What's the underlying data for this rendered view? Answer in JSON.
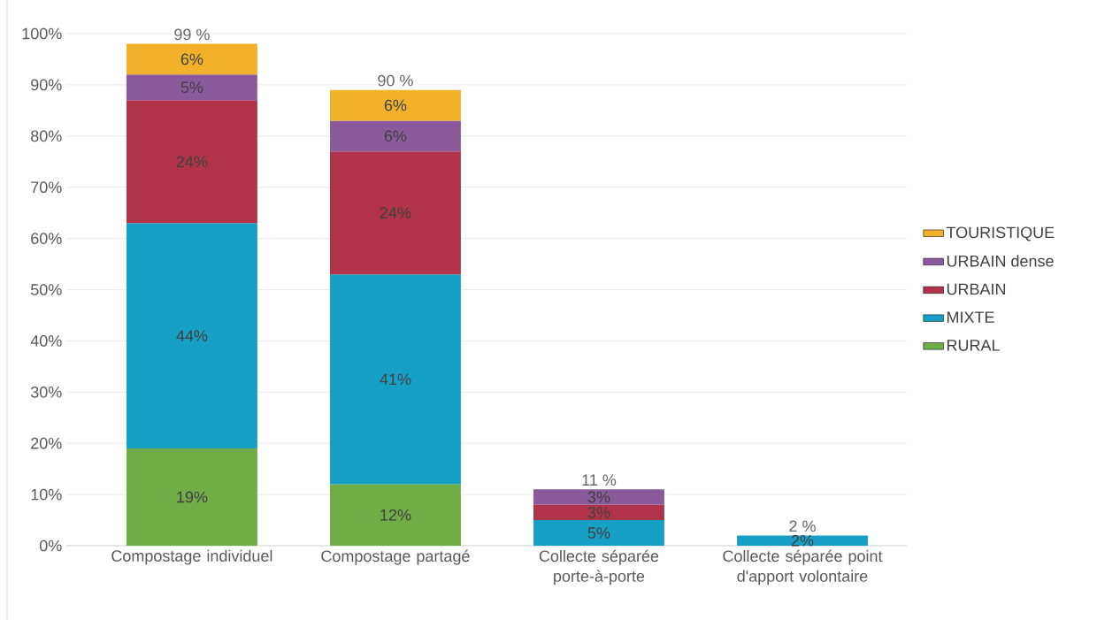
{
  "chart_data": {
    "type": "bar",
    "stacked": true,
    "categories": [
      "Compostage individuel",
      "Compostage partagé",
      "Collecte séparée porte-à-porte",
      "Collecte séparée point d'apport volontaire"
    ],
    "series": [
      {
        "name": "RURAL",
        "color": "#70ad47",
        "values": [
          19,
          12,
          null,
          null
        ],
        "value_labels": [
          "19%",
          "12%",
          null,
          null
        ]
      },
      {
        "name": "MIXTE",
        "color": "#17a0c5",
        "values": [
          44,
          41,
          5,
          2
        ],
        "value_labels": [
          "44%",
          "41%",
          "5%",
          "2%"
        ]
      },
      {
        "name": "URBAIN",
        "color": "#b0334a",
        "values": [
          24,
          24,
          3,
          null
        ],
        "value_labels": [
          "24%",
          "24%",
          "3%",
          null
        ]
      },
      {
        "name": "URBAIN dense",
        "color": "#8a5a9b",
        "values": [
          5,
          6,
          3,
          null
        ],
        "value_labels": [
          "5%",
          "6%",
          "3%",
          null
        ]
      },
      {
        "name": "TOURISTIQUE",
        "color": "#f1b12a",
        "values": [
          6,
          6,
          null,
          null
        ],
        "value_labels": [
          "6%",
          "6%",
          null,
          null
        ]
      }
    ],
    "totals": [
      "99 %",
      "90 %",
      "11 %",
      "2 %"
    ],
    "ylim": [
      0,
      100
    ],
    "yticks": [
      {
        "value": 0,
        "label": "0%"
      },
      {
        "value": 10,
        "label": "10%"
      },
      {
        "value": 20,
        "label": "20%"
      },
      {
        "value": 30,
        "label": "30%"
      },
      {
        "value": 40,
        "label": "40%"
      },
      {
        "value": 50,
        "label": "50%"
      },
      {
        "value": 60,
        "label": "60%"
      },
      {
        "value": 70,
        "label": "70%"
      },
      {
        "value": 80,
        "label": "80%"
      },
      {
        "value": 90,
        "label": "90%"
      },
      {
        "value": 100,
        "label": "100%"
      }
    ],
    "grid": "y",
    "legend": "right"
  }
}
